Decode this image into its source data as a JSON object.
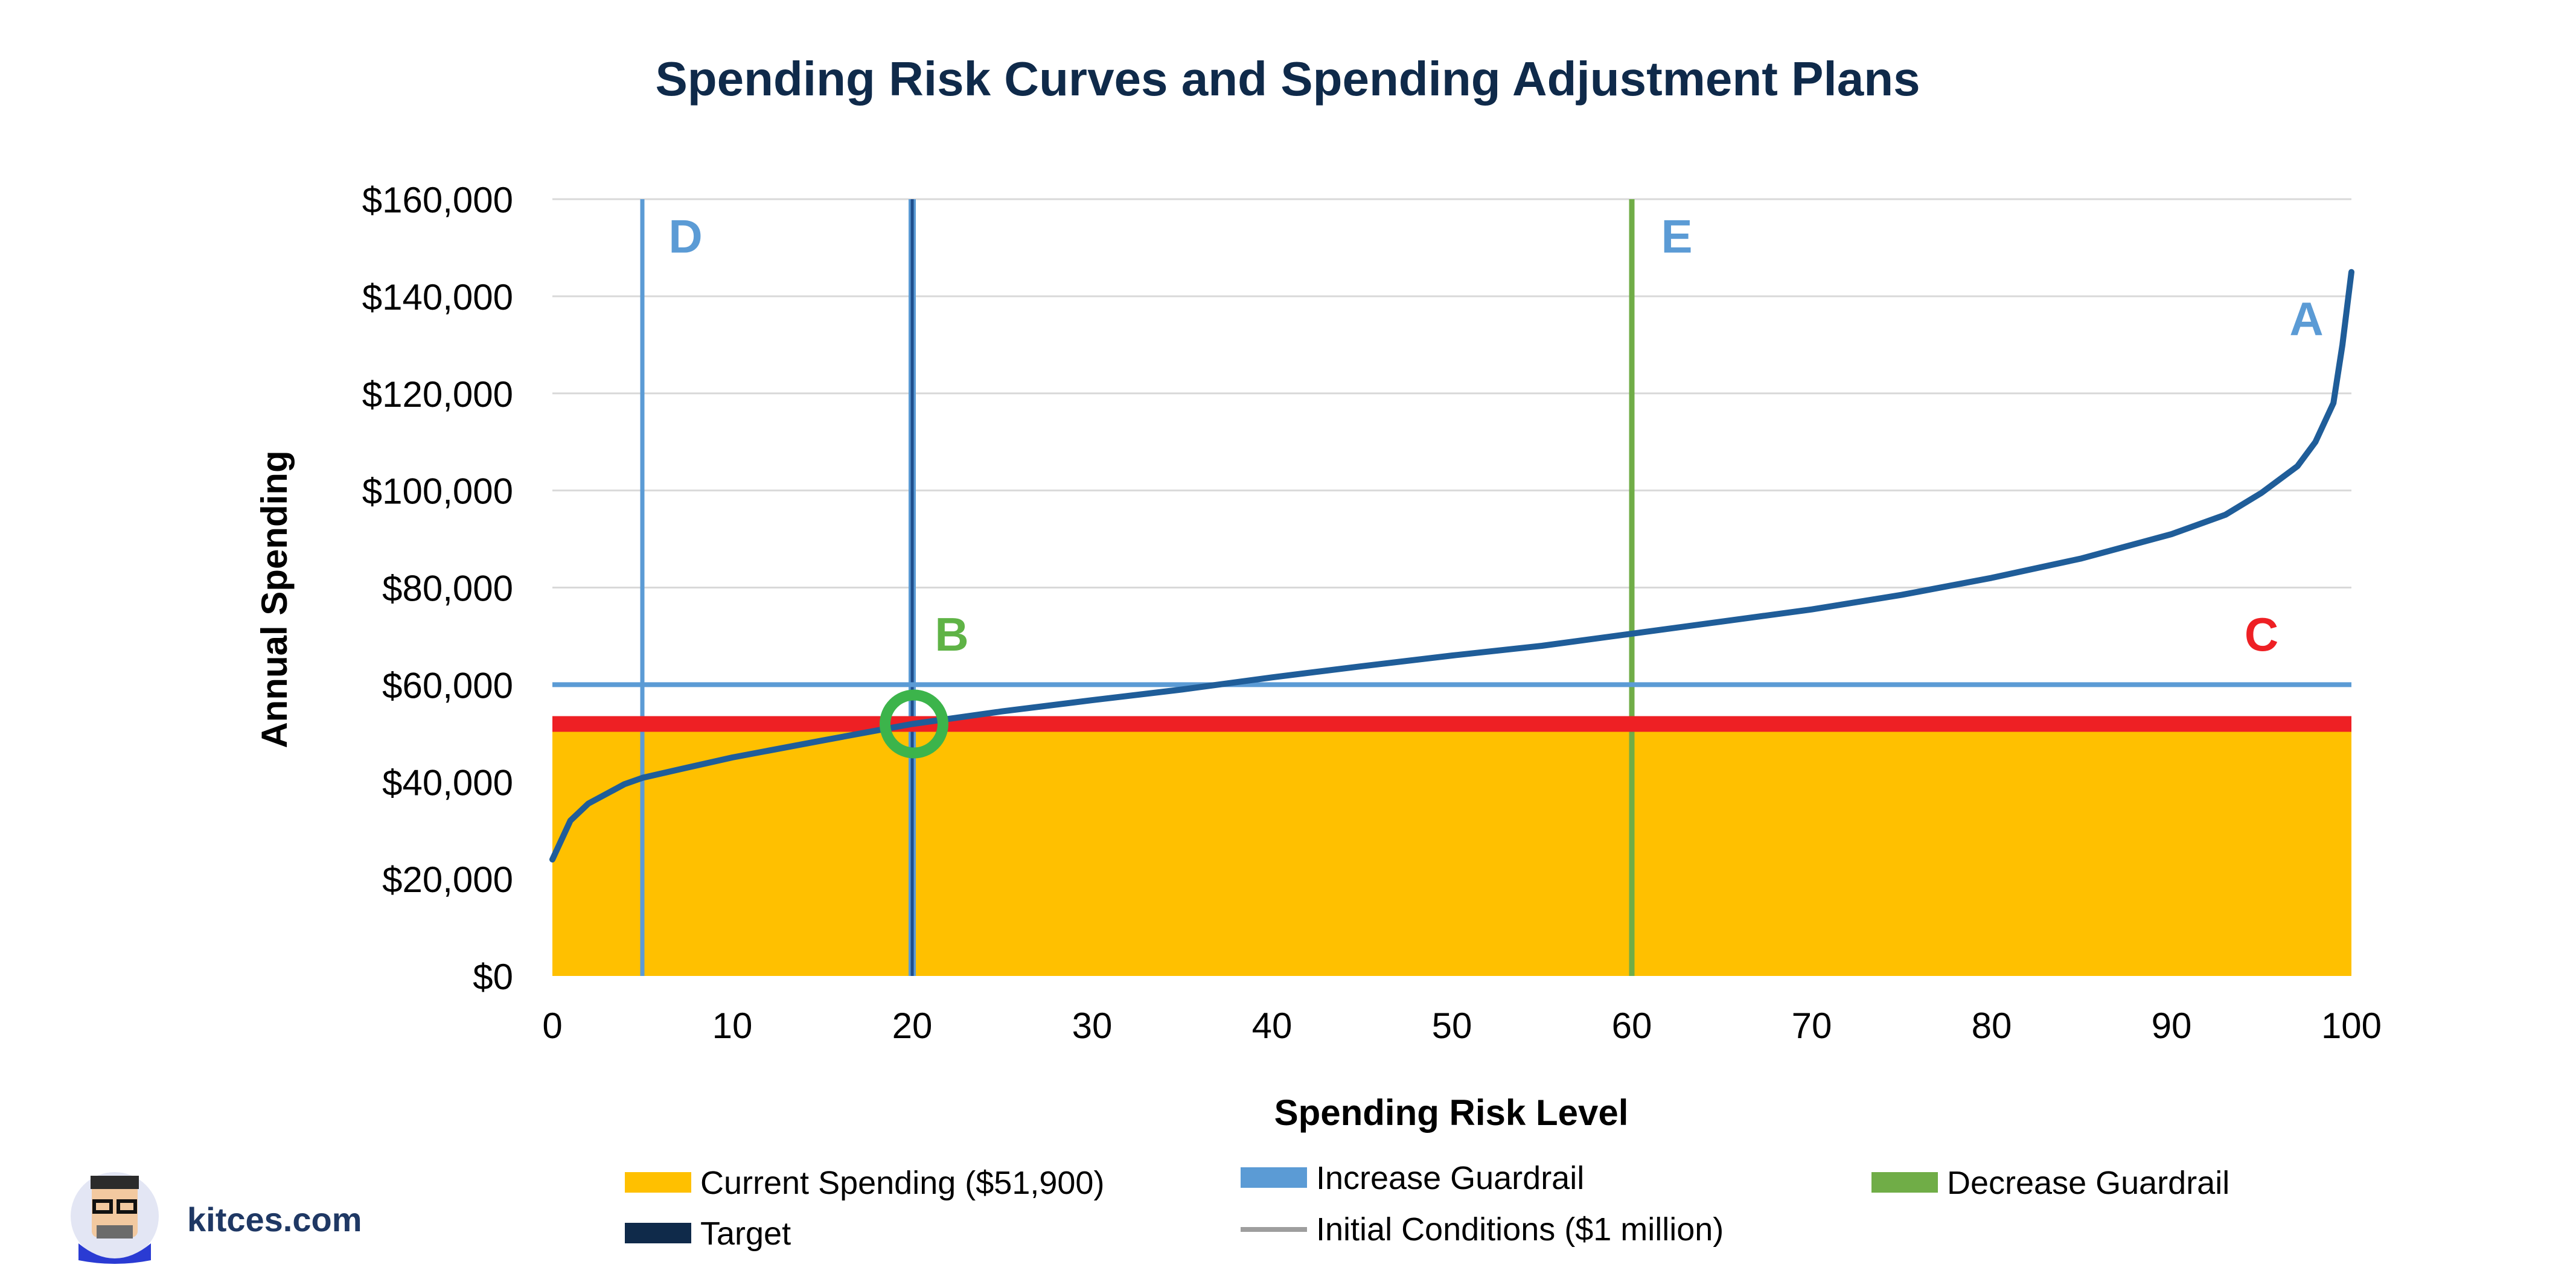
{
  "chart_data": {
    "type": "line",
    "title": "Spending Risk Curves and Spending Adjustment Plans",
    "xlabel": "Spending Risk Level",
    "ylabel": "Annual Spending",
    "xlim": [
      0,
      100
    ],
    "ylim": [
      0,
      160000
    ],
    "x_ticks": [
      0,
      10,
      20,
      30,
      40,
      50,
      60,
      70,
      80,
      90,
      100
    ],
    "x_tick_labels": [
      "0",
      "10",
      "20",
      "30",
      "40",
      "50",
      "60",
      "70",
      "80",
      "90",
      "100"
    ],
    "y_ticks": [
      0,
      20000,
      40000,
      60000,
      80000,
      100000,
      120000,
      140000,
      160000
    ],
    "y_tick_labels": [
      "$0",
      "$20,000",
      "$40,000",
      "$60,000",
      "$80,000",
      "$100,000",
      "$120,000",
      "$140,000",
      "$160,000"
    ],
    "grid": "horizontal",
    "series": [
      {
        "name": "Spending Risk Curve",
        "color": "#1f5d99",
        "points": [
          [
            0,
            24000
          ],
          [
            1,
            32000
          ],
          [
            2,
            35500
          ],
          [
            3,
            37500
          ],
          [
            4,
            39500
          ],
          [
            5,
            40800
          ],
          [
            7,
            42500
          ],
          [
            10,
            45000
          ],
          [
            15,
            48500
          ],
          [
            20,
            51900
          ],
          [
            25,
            54500
          ],
          [
            30,
            56800
          ],
          [
            35,
            59000
          ],
          [
            40,
            61500
          ],
          [
            45,
            63800
          ],
          [
            50,
            66000
          ],
          [
            55,
            68000
          ],
          [
            60,
            70500
          ],
          [
            65,
            73000
          ],
          [
            70,
            75500
          ],
          [
            75,
            78500
          ],
          [
            80,
            82000
          ],
          [
            85,
            86000
          ],
          [
            90,
            91000
          ],
          [
            93,
            95000
          ],
          [
            95,
            99500
          ],
          [
            97,
            105000
          ],
          [
            98,
            110000
          ],
          [
            99,
            118000
          ],
          [
            99.5,
            130000
          ],
          [
            100,
            145000
          ]
        ]
      }
    ],
    "current_spending": {
      "value": 51900,
      "color": "#ffc000",
      "line_color": "#ee2024"
    },
    "increase_guardrail": {
      "x": 5,
      "y": 60000,
      "color": "#5b9bd5"
    },
    "target": {
      "x": 20,
      "y": 51900,
      "color": "#1f4e8c"
    },
    "decrease_guardrail": {
      "x": 60,
      "color": "#70ad47"
    },
    "marker": {
      "x": 20.1,
      "y": 51900,
      "color": "#3cb44b"
    },
    "annotations": [
      {
        "label": "A",
        "x": 97.5,
        "y": 132000,
        "color": "#5b9bd5"
      },
      {
        "label": "B",
        "x": 22.2,
        "y": 67000,
        "color": "#5fb346"
      },
      {
        "label": "C",
        "x": 95.0,
        "y": 67000,
        "color": "#ee2024"
      },
      {
        "label": "D",
        "x": 7.4,
        "y": 149000,
        "color": "#5b9bd5"
      },
      {
        "label": "E",
        "x": 62.5,
        "y": 149000,
        "color": "#5b9bd5"
      }
    ],
    "legend": [
      {
        "label": "Current Spending ($51,900)",
        "color": "#ffc000",
        "shape": "block"
      },
      {
        "label": "Increase Guardrail",
        "color": "#5b9bd5",
        "shape": "block"
      },
      {
        "label": "Decrease Guardrail",
        "color": "#70ad47",
        "shape": "block"
      },
      {
        "label": "Target",
        "color": "#0f2a4a",
        "shape": "block"
      },
      {
        "label": "Initial Conditions ($1 million)",
        "color": "#9e9e9e",
        "shape": "line"
      }
    ],
    "legend_position": "bottom"
  },
  "branding": {
    "site": "kitces.com",
    "avatar": "kitces-avatar"
  },
  "colors": {
    "title": "#0f2a4a",
    "text": "#000000",
    "grid": "#d9d9d9"
  }
}
